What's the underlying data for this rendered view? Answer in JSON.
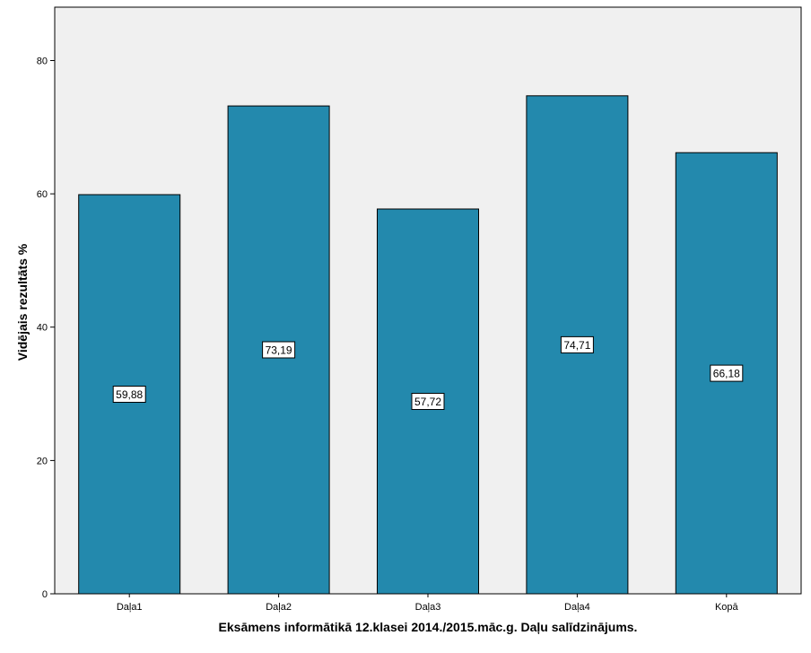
{
  "chart_data": {
    "type": "bar",
    "categories": [
      "Daļa1",
      "Daļa2",
      "Daļa3",
      "Daļa4",
      "Kopā"
    ],
    "values": [
      59.88,
      73.19,
      57.72,
      74.71,
      66.18
    ],
    "data_labels": [
      "59,88",
      "73,19",
      "57,72",
      "74,71",
      "66,18"
    ],
    "title": "",
    "xlabel": "Eksāmens informātikā 12.klasei 2014./2015.māc.g. Daļu salīdzinājums.",
    "ylabel": "Vidējais rezultāts %",
    "ylim": [
      0,
      88
    ],
    "yticks": [
      0,
      20,
      40,
      60,
      80
    ],
    "grid": false,
    "legend": "none",
    "colors": {
      "bar": "#2389ad",
      "bar_stroke": "#000000",
      "plot_background": "#f0f0f0",
      "page_background": "#ffffff",
      "label_box": "#ffffff"
    }
  }
}
